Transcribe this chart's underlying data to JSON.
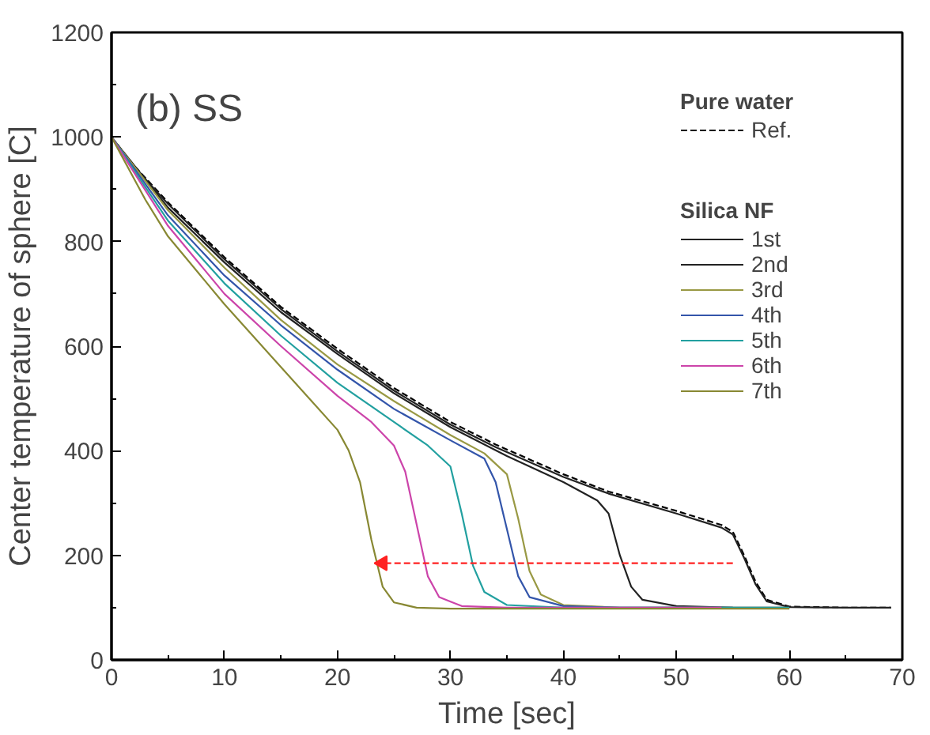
{
  "chart_data": {
    "type": "line",
    "xlabel": "Time [sec]",
    "ylabel": "Center temperature of sphere [C]",
    "legend_title": "Pure water",
    "legend": "top right",
    "grid": false,
    "annotations": [
      "(b) SS",
      "Silica NF"
    ],
    "xlim": [
      0,
      70
    ],
    "ylim": [
      0,
      1200
    ],
    "xticks": [
      0,
      {
        "value": 5,
        "label": null
      },
      10,
      {
        "value": 15,
        "label": null
      },
      20,
      {
        "value": 25,
        "label": null
      },
      30,
      {
        "value": 35,
        "label": null
      },
      40,
      {
        "value": 45,
        "label": null
      },
      50,
      {
        "value": 55,
        "label": null
      },
      60,
      {
        "value": 65,
        "label": null
      },
      70
    ],
    "yticks": [
      0,
      {
        "value": 100,
        "label": null
      },
      200,
      {
        "value": 300,
        "label": null
      },
      400,
      {
        "value": 500,
        "label": null
      },
      600,
      {
        "value": 700,
        "label": null
      },
      800,
      {
        "value": 900,
        "label": null
      },
      1000,
      {
        "value": 1100,
        "label": null
      },
      1200
    ],
    "series": [
      {
        "name": "Ref.",
        "color": "#000000",
        "line_style": "dashed",
        "x": [
          0,
          2,
          5,
          10,
          15,
          20,
          25,
          30,
          34,
          40,
          44,
          50,
          54,
          55,
          56,
          57,
          58,
          60,
          65,
          69
        ],
        "values": [
          1000,
          945,
          875,
          770,
          675,
          595,
          520,
          455,
          412,
          355,
          322,
          285,
          258,
          245,
          200,
          150,
          115,
          102,
          100,
          100
        ]
      },
      {
        "name": "1st",
        "color": "#222222",
        "x": [
          0,
          2,
          5,
          10,
          15,
          20,
          25,
          30,
          34,
          40,
          44,
          50,
          54,
          55,
          56,
          57,
          58,
          60,
          65,
          69
        ],
        "values": [
          1000,
          943,
          872,
          766,
          671,
          590,
          515,
          450,
          407,
          350,
          318,
          280,
          253,
          240,
          195,
          145,
          112,
          101,
          100,
          100
        ]
      },
      {
        "name": "2nd",
        "color": "#222222",
        "x": [
          0,
          5,
          10,
          15,
          20,
          25,
          30,
          35,
          40,
          43,
          44,
          45,
          46,
          47,
          50,
          55,
          60
        ],
        "values": [
          1000,
          865,
          760,
          665,
          585,
          510,
          445,
          390,
          340,
          305,
          280,
          200,
          140,
          115,
          103,
          100,
          100
        ]
      },
      {
        "name": "3rd",
        "color": "#999944",
        "x": [
          0,
          5,
          10,
          15,
          20,
          25,
          30,
          33,
          35,
          36,
          37,
          38,
          40,
          45,
          55
        ],
        "values": [
          1000,
          860,
          750,
          650,
          565,
          495,
          430,
          395,
          355,
          270,
          170,
          125,
          105,
          100,
          100
        ]
      },
      {
        "name": "4th",
        "color": "#3355aa",
        "x": [
          0,
          5,
          10,
          15,
          20,
          25,
          30,
          33,
          34,
          35,
          36,
          37,
          40,
          45,
          55
        ],
        "values": [
          1000,
          850,
          735,
          640,
          555,
          480,
          420,
          385,
          340,
          250,
          160,
          120,
          103,
          100,
          100
        ]
      },
      {
        "name": "5th",
        "color": "#22a0a0",
        "x": [
          0,
          5,
          10,
          15,
          20,
          25,
          28,
          30,
          31,
          32,
          33,
          35,
          40,
          60
        ],
        "values": [
          1000,
          840,
          720,
          620,
          530,
          455,
          410,
          370,
          280,
          180,
          130,
          105,
          100,
          100
        ]
      },
      {
        "name": "6th",
        "color": "#cc44aa",
        "x": [
          0,
          5,
          10,
          15,
          20,
          23,
          25,
          26,
          27,
          28,
          29,
          31,
          35,
          54
        ],
        "values": [
          1000,
          830,
          700,
          600,
          505,
          455,
          410,
          360,
          260,
          160,
          120,
          103,
          100,
          100
        ]
      },
      {
        "name": "7th",
        "color": "#888833",
        "x": [
          0,
          3,
          5,
          10,
          15,
          20,
          21,
          22,
          23,
          24,
          25,
          27,
          30,
          45,
          60
        ],
        "values": [
          1000,
          880,
          810,
          680,
          560,
          440,
          400,
          340,
          230,
          140,
          110,
          100,
          98,
          98,
          98
        ]
      },
      {
        "color": "#ff2222",
        "line_style": "dashed",
        "marker": "triangle",
        "x": [
          55,
          24
        ],
        "values": [
          185,
          185
        ]
      }
    ]
  }
}
